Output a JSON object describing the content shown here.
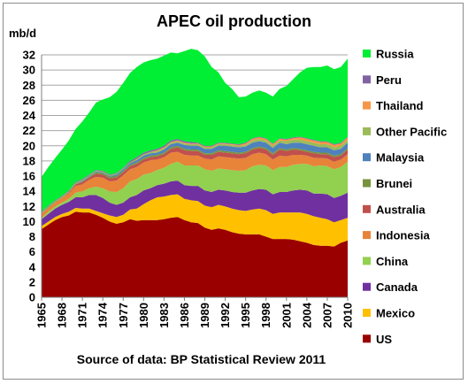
{
  "chart_data": {
    "type": "area",
    "stacked": true,
    "title": "APEC oil production",
    "ylabel": "mb/d",
    "source": "Source of data: BP Statistical Review 2011",
    "ylim": [
      0,
      32
    ],
    "yticks": [
      0,
      2,
      4,
      6,
      8,
      10,
      12,
      14,
      16,
      18,
      20,
      22,
      24,
      26,
      28,
      30,
      32
    ],
    "xlim": [
      1965,
      2010
    ],
    "xticks": [
      "1965",
      "1968",
      "1971",
      "1974",
      "1977",
      "1980",
      "1983",
      "1986",
      "1989",
      "1992",
      "1995",
      "1998",
      "2001",
      "2004",
      "2007",
      "2010"
    ],
    "grid": "horizontal",
    "legend_position": "right",
    "x": [
      1965,
      1966,
      1967,
      1968,
      1969,
      1970,
      1971,
      1972,
      1973,
      1974,
      1975,
      1976,
      1977,
      1978,
      1979,
      1980,
      1981,
      1982,
      1983,
      1984,
      1985,
      1986,
      1987,
      1988,
      1989,
      1990,
      1991,
      1992,
      1993,
      1994,
      1995,
      1996,
      1997,
      1998,
      1999,
      2000,
      2001,
      2002,
      2003,
      2004,
      2005,
      2006,
      2007,
      2008,
      2009,
      2010
    ],
    "series": [
      {
        "name": "US",
        "color": "#9b0000",
        "values": [
          9.0,
          9.6,
          10.2,
          10.6,
          10.8,
          11.3,
          11.2,
          11.2,
          10.9,
          10.5,
          10.0,
          9.7,
          9.9,
          10.3,
          10.1,
          10.2,
          10.2,
          10.2,
          10.3,
          10.5,
          10.6,
          10.2,
          9.9,
          9.8,
          9.2,
          8.9,
          9.1,
          8.9,
          8.6,
          8.4,
          8.3,
          8.3,
          8.3,
          8.0,
          7.7,
          7.7,
          7.7,
          7.6,
          7.4,
          7.2,
          6.9,
          6.8,
          6.8,
          6.7,
          7.2,
          7.5
        ]
      },
      {
        "name": "Mexico",
        "color": "#ffc000",
        "values": [
          0.4,
          0.4,
          0.4,
          0.4,
          0.5,
          0.5,
          0.5,
          0.5,
          0.5,
          0.6,
          0.8,
          0.9,
          1.0,
          1.3,
          1.6,
          2.1,
          2.6,
          3.0,
          3.0,
          3.0,
          3.0,
          2.8,
          2.9,
          2.9,
          2.9,
          3.0,
          3.1,
          3.1,
          3.1,
          3.1,
          3.1,
          3.3,
          3.4,
          3.5,
          3.3,
          3.5,
          3.5,
          3.6,
          3.8,
          3.8,
          3.8,
          3.7,
          3.5,
          3.2,
          3.0,
          3.0
        ]
      },
      {
        "name": "Canada",
        "color": "#7030a0",
        "values": [
          0.9,
          1.0,
          1.1,
          1.2,
          1.3,
          1.4,
          1.5,
          1.8,
          2.1,
          2.0,
          1.7,
          1.6,
          1.6,
          1.6,
          1.8,
          1.8,
          1.6,
          1.6,
          1.7,
          1.8,
          1.8,
          1.8,
          1.9,
          2.0,
          2.0,
          2.0,
          2.0,
          2.1,
          2.2,
          2.3,
          2.4,
          2.5,
          2.6,
          2.7,
          2.6,
          2.7,
          2.7,
          2.9,
          3.0,
          3.1,
          3.0,
          3.2,
          3.3,
          3.2,
          3.2,
          3.3
        ]
      },
      {
        "name": "China",
        "color": "#92d050",
        "values": [
          0.2,
          0.3,
          0.3,
          0.3,
          0.4,
          0.6,
          0.8,
          0.9,
          1.1,
          1.3,
          1.5,
          1.7,
          1.9,
          2.1,
          2.1,
          2.1,
          2.0,
          2.0,
          2.1,
          2.3,
          2.5,
          2.6,
          2.7,
          2.7,
          2.8,
          2.8,
          2.8,
          2.8,
          2.9,
          2.9,
          3.0,
          3.2,
          3.2,
          3.2,
          3.2,
          3.3,
          3.3,
          3.4,
          3.4,
          3.5,
          3.6,
          3.7,
          3.7,
          3.8,
          3.8,
          4.1
        ]
      },
      {
        "name": "Indonesia",
        "color": "#e8833a",
        "values": [
          0.5,
          0.5,
          0.5,
          0.6,
          0.7,
          0.9,
          0.9,
          1.1,
          1.3,
          1.4,
          1.3,
          1.5,
          1.7,
          1.6,
          1.6,
          1.6,
          1.7,
          1.4,
          1.4,
          1.5,
          1.3,
          1.4,
          1.3,
          1.3,
          1.4,
          1.5,
          1.6,
          1.6,
          1.6,
          1.6,
          1.6,
          1.6,
          1.6,
          1.5,
          1.4,
          1.5,
          1.4,
          1.3,
          1.2,
          1.1,
          1.1,
          1.0,
          1.0,
          1.0,
          1.0,
          1.0
        ]
      },
      {
        "name": "Australia",
        "color": "#c0504d",
        "values": [
          0.0,
          0.0,
          0.0,
          0.0,
          0.1,
          0.2,
          0.3,
          0.3,
          0.4,
          0.4,
          0.4,
          0.4,
          0.4,
          0.4,
          0.4,
          0.4,
          0.4,
          0.4,
          0.4,
          0.5,
          0.6,
          0.6,
          0.6,
          0.6,
          0.5,
          0.6,
          0.6,
          0.6,
          0.6,
          0.6,
          0.6,
          0.6,
          0.6,
          0.6,
          0.6,
          0.8,
          0.7,
          0.7,
          0.6,
          0.5,
          0.6,
          0.5,
          0.6,
          0.6,
          0.5,
          0.6
        ]
      },
      {
        "name": "Brunei",
        "color": "#77933c",
        "values": [
          0.1,
          0.1,
          0.1,
          0.1,
          0.1,
          0.1,
          0.1,
          0.1,
          0.2,
          0.2,
          0.2,
          0.2,
          0.2,
          0.2,
          0.2,
          0.2,
          0.2,
          0.2,
          0.2,
          0.2,
          0.2,
          0.2,
          0.2,
          0.2,
          0.2,
          0.2,
          0.2,
          0.2,
          0.2,
          0.2,
          0.2,
          0.2,
          0.2,
          0.2,
          0.2,
          0.2,
          0.2,
          0.2,
          0.2,
          0.2,
          0.2,
          0.2,
          0.2,
          0.2,
          0.2,
          0.2
        ]
      },
      {
        "name": "Malaysia",
        "color": "#4f81bd",
        "values": [
          0.0,
          0.0,
          0.0,
          0.0,
          0.0,
          0.0,
          0.1,
          0.1,
          0.1,
          0.1,
          0.1,
          0.2,
          0.2,
          0.2,
          0.3,
          0.3,
          0.3,
          0.3,
          0.4,
          0.4,
          0.4,
          0.5,
          0.5,
          0.5,
          0.6,
          0.6,
          0.6,
          0.7,
          0.7,
          0.7,
          0.7,
          0.7,
          0.7,
          0.7,
          0.7,
          0.7,
          0.7,
          0.7,
          0.8,
          0.8,
          0.8,
          0.7,
          0.7,
          0.7,
          0.7,
          0.7
        ]
      },
      {
        "name": "Other Pacific",
        "color": "#9bbb59",
        "values": [
          0.1,
          0.1,
          0.1,
          0.1,
          0.1,
          0.1,
          0.1,
          0.1,
          0.1,
          0.1,
          0.1,
          0.1,
          0.1,
          0.1,
          0.2,
          0.2,
          0.2,
          0.2,
          0.2,
          0.2,
          0.2,
          0.2,
          0.2,
          0.2,
          0.2,
          0.2,
          0.2,
          0.2,
          0.2,
          0.2,
          0.2,
          0.3,
          0.3,
          0.3,
          0.3,
          0.3,
          0.4,
          0.4,
          0.4,
          0.4,
          0.4,
          0.4,
          0.4,
          0.4,
          0.4,
          0.4
        ]
      },
      {
        "name": "Thailand",
        "color": "#f79646",
        "values": [
          0.0,
          0.0,
          0.0,
          0.0,
          0.0,
          0.0,
          0.0,
          0.0,
          0.0,
          0.0,
          0.0,
          0.0,
          0.0,
          0.0,
          0.0,
          0.0,
          0.0,
          0.1,
          0.1,
          0.1,
          0.1,
          0.1,
          0.1,
          0.1,
          0.1,
          0.1,
          0.1,
          0.1,
          0.1,
          0.1,
          0.2,
          0.2,
          0.2,
          0.2,
          0.2,
          0.2,
          0.2,
          0.2,
          0.3,
          0.3,
          0.3,
          0.3,
          0.3,
          0.3,
          0.3,
          0.3
        ]
      },
      {
        "name": "Peru",
        "color": "#8064a2",
        "values": [
          0.1,
          0.1,
          0.1,
          0.1,
          0.1,
          0.1,
          0.1,
          0.1,
          0.1,
          0.1,
          0.1,
          0.1,
          0.1,
          0.2,
          0.2,
          0.2,
          0.2,
          0.2,
          0.2,
          0.2,
          0.2,
          0.2,
          0.2,
          0.1,
          0.1,
          0.1,
          0.1,
          0.1,
          0.1,
          0.1,
          0.1,
          0.1,
          0.1,
          0.1,
          0.1,
          0.1,
          0.1,
          0.1,
          0.1,
          0.1,
          0.1,
          0.1,
          0.1,
          0.1,
          0.1,
          0.1
        ]
      },
      {
        "name": "Russia",
        "color": "#00ee33",
        "values": [
          4.6,
          5.1,
          5.6,
          6.1,
          6.6,
          7.0,
          7.6,
          8.2,
          8.9,
          9.4,
          10.2,
          10.7,
          11.2,
          11.6,
          11.9,
          11.9,
          11.9,
          11.9,
          11.9,
          11.6,
          11.3,
          11.9,
          12.3,
          12.2,
          11.8,
          10.4,
          9.3,
          7.9,
          7.2,
          6.2,
          6.1,
          6.0,
          6.1,
          6.0,
          6.2,
          6.5,
          7.0,
          7.7,
          8.5,
          9.3,
          9.6,
          9.8,
          10.0,
          9.9,
          10.0,
          10.3
        ]
      }
    ]
  }
}
